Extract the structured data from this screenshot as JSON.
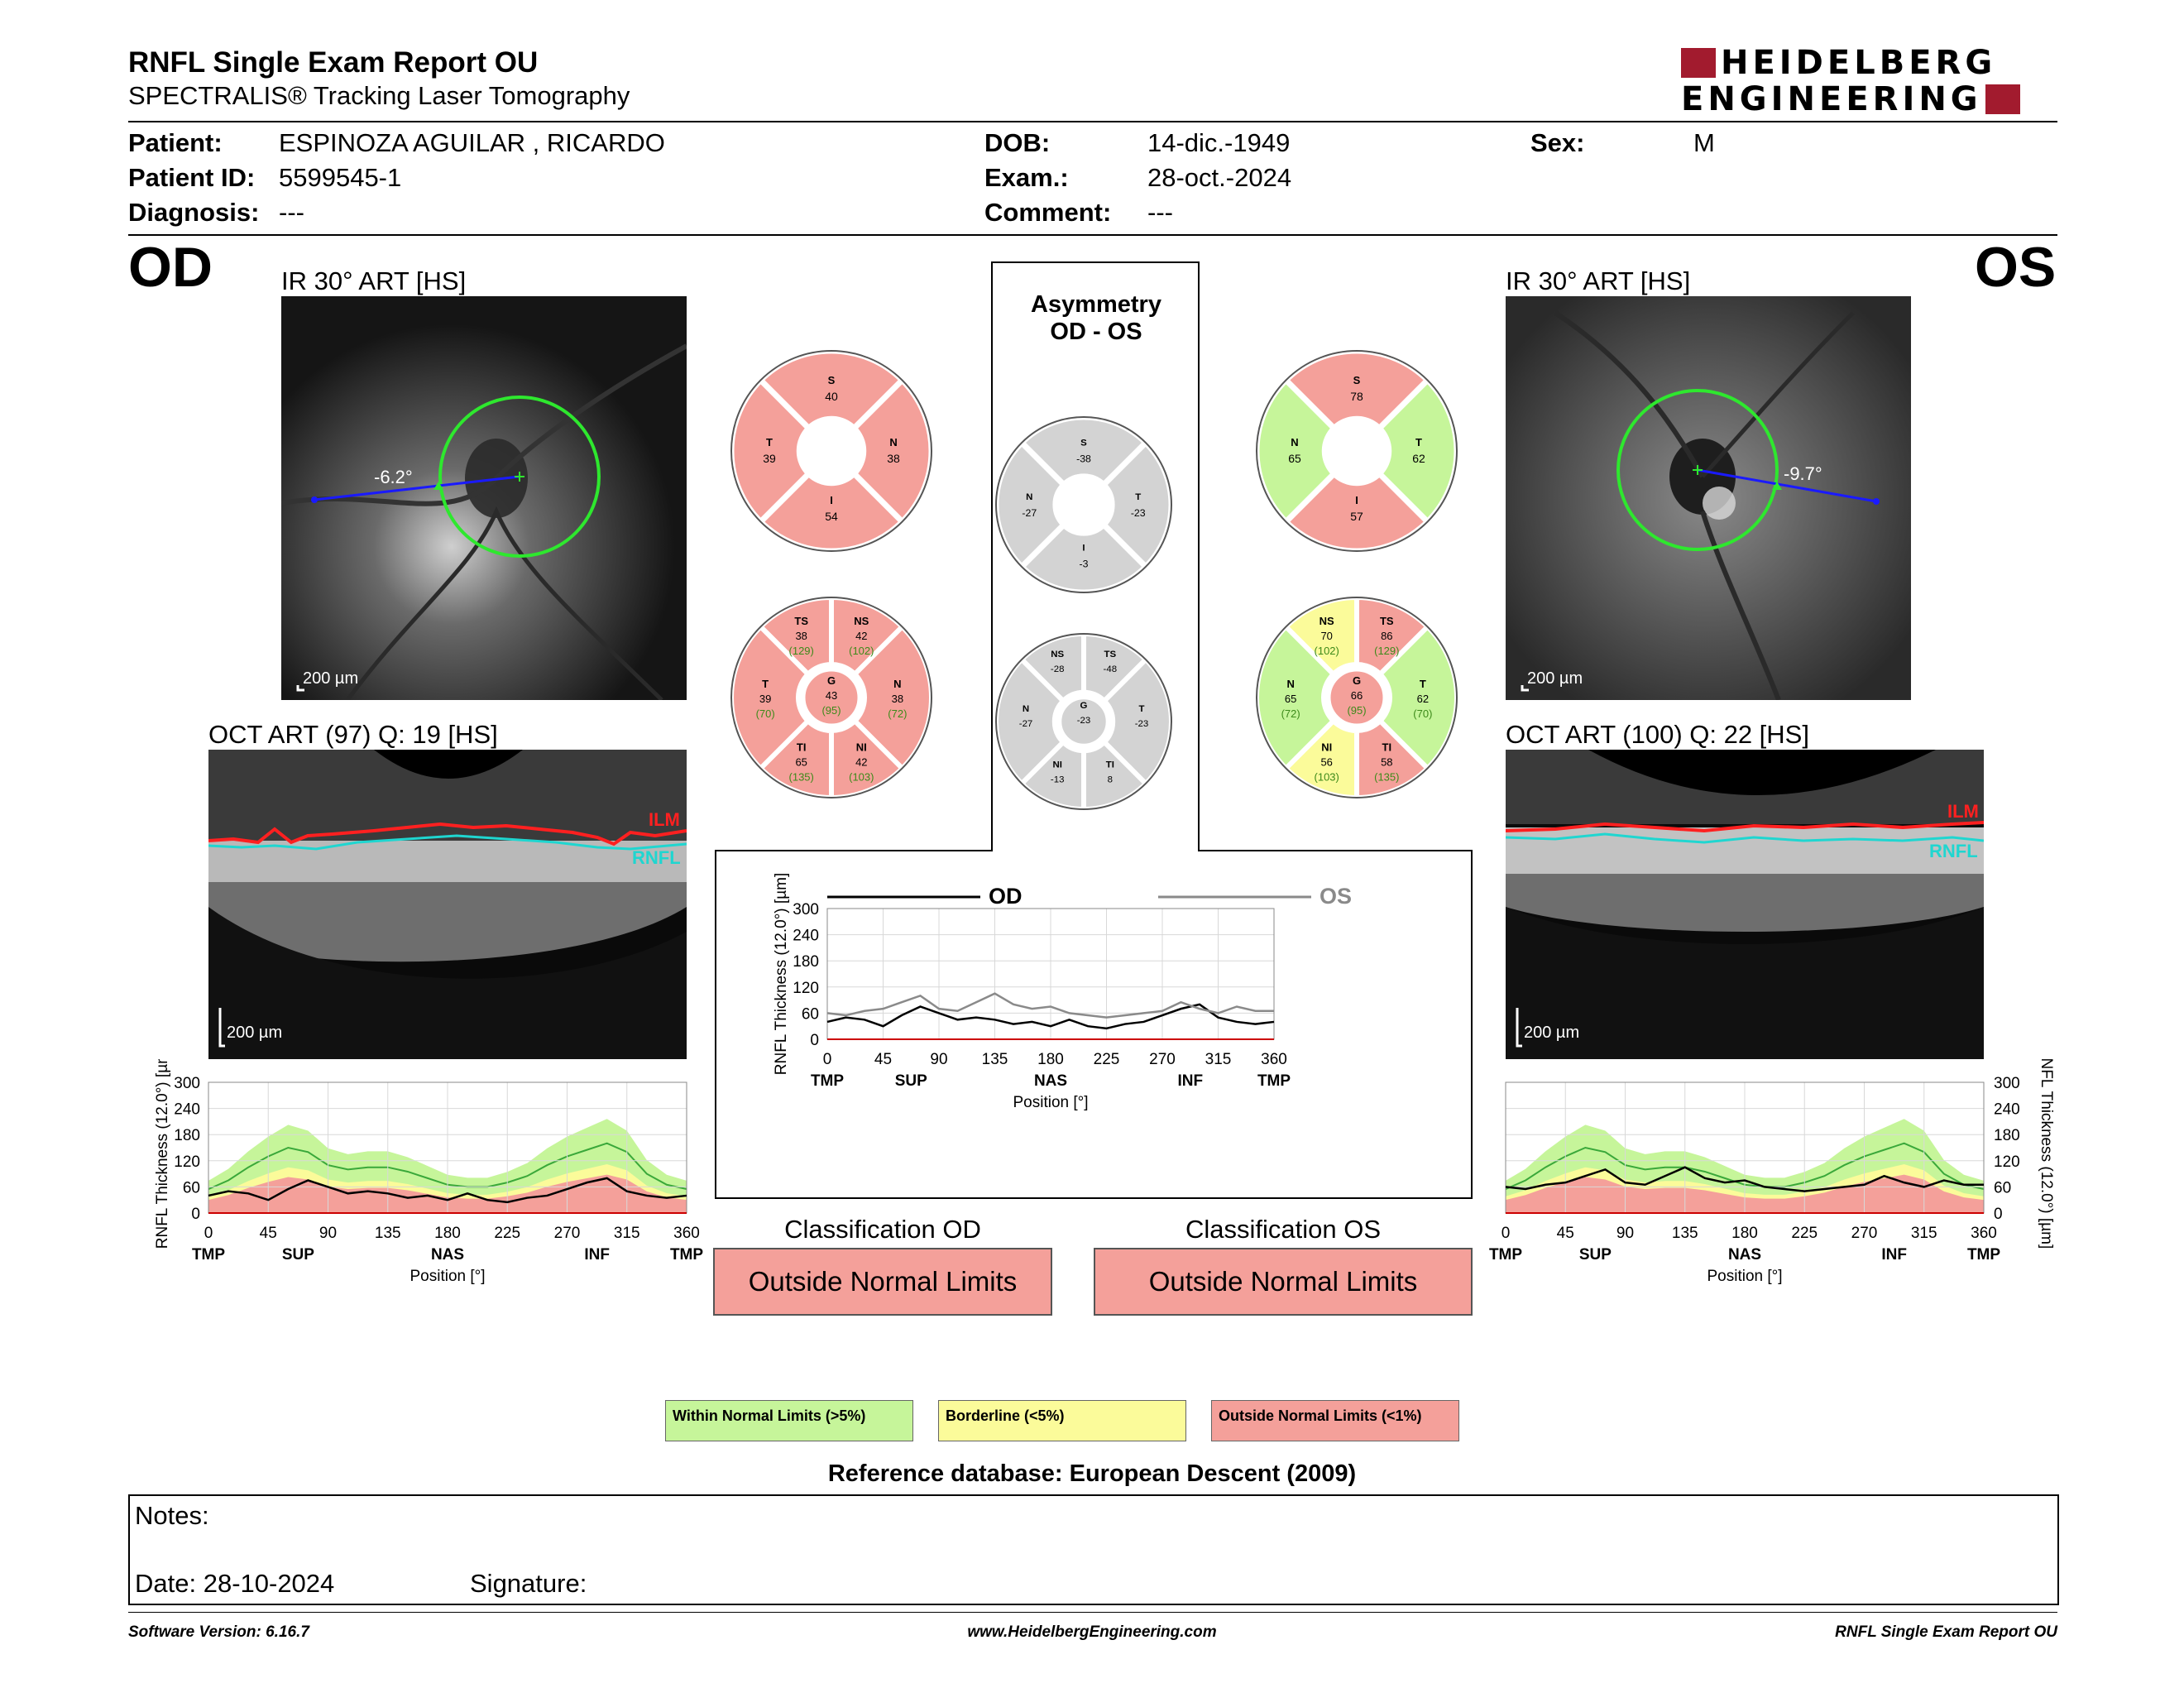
{
  "header": {
    "title": "RNFL Single Exam Report OU",
    "subtitle": "SPECTRALIS® Tracking Laser Tomography",
    "logo_line1": "HEIDELBERG",
    "logo_line2": "ENGINEERING"
  },
  "patient": {
    "patient_label": "Patient:",
    "patient_value": "ESPINOZA AGUILAR , RICARDO",
    "id_label": "Patient ID:",
    "id_value": "5599545-1",
    "diagnosis_label": "Diagnosis:",
    "diagnosis_value": "---",
    "dob_label": "DOB:",
    "dob_value": "14-dic.-1949",
    "exam_label": "Exam.:",
    "exam_value": "28-oct.-2024",
    "comment_label": "Comment:",
    "comment_value": "---",
    "sex_label": "Sex:",
    "sex_value": "M"
  },
  "od": {
    "eye": "OD",
    "ir_caption": "IR 30° ART [HS]",
    "ir_angle": "-6.2°",
    "scale": "200 µm",
    "oct_caption": "OCT ART (97) Q: 19 [HS]",
    "ilm": "ILM",
    "rnfl": "RNFL",
    "sectors4": {
      "S": "40",
      "N": "38",
      "I": "54",
      "T": "39"
    },
    "sectors6": {
      "TS": "38",
      "TS_n": "(129)",
      "NS": "42",
      "NS_n": "(102)",
      "T": "39",
      "T_n": "(70)",
      "G": "43",
      "G_n": "(95)",
      "N": "38",
      "N_n": "(72)",
      "TI": "65",
      "TI_n": "(135)",
      "NI": "42",
      "NI_n": "(103)"
    },
    "class_title": "Classification OD",
    "class_value": "Outside Normal Limits"
  },
  "os": {
    "eye": "OS",
    "ir_caption": "IR 30° ART [HS]",
    "ir_angle": "-9.7°",
    "scale": "200 µm",
    "oct_caption": "OCT ART (100) Q: 22 [HS]",
    "ilm": "ILM",
    "rnfl": "RNFL",
    "sectors4": {
      "S": "78",
      "N": "65",
      "I": "57",
      "T": "62"
    },
    "sectors6": {
      "NS": "70",
      "NS_n": "(102)",
      "TS": "86",
      "TS_n": "(129)",
      "N": "65",
      "N_n": "(72)",
      "G": "66",
      "G_n": "(95)",
      "T": "62",
      "T_n": "(70)",
      "NI": "56",
      "NI_n": "(103)",
      "TI": "58",
      "TI_n": "(135)"
    },
    "class_title": "Classification OS",
    "class_value": "Outside Normal Limits"
  },
  "asym": {
    "title1": "Asymmetry",
    "title2": "OD - OS",
    "sectors4": {
      "S": "-38",
      "N": "-27",
      "I": "-3",
      "T": "-23"
    },
    "sectors6": {
      "NS": "-28",
      "TS": "-48",
      "N": "-27",
      "G": "-23",
      "T": "-23",
      "NI": "-13",
      "TI": "8"
    }
  },
  "chart_data": [
    {
      "type": "line",
      "title": "",
      "ylabel": "RNFL Thickness (12.0°) [µm]",
      "xlabel": "Position [°]",
      "ylim": [
        0,
        300
      ],
      "xlim": [
        0,
        360
      ],
      "yticks": [
        "300",
        "240",
        "180",
        "120",
        "60",
        "0"
      ],
      "xticks": [
        "0",
        "45",
        "90",
        "135",
        "180",
        "225",
        "270",
        "315",
        "360"
      ],
      "xcats": [
        "TMP",
        "SUP",
        "NAS",
        "INF",
        "TMP"
      ],
      "series": [
        {
          "name": "OD",
          "x": [
            0,
            15,
            30,
            45,
            60,
            75,
            90,
            105,
            120,
            135,
            150,
            165,
            180,
            195,
            210,
            225,
            240,
            255,
            270,
            285,
            300,
            315,
            330,
            345,
            360
          ],
          "values": [
            40,
            50,
            45,
            30,
            55,
            75,
            60,
            45,
            50,
            45,
            35,
            40,
            30,
            45,
            30,
            25,
            35,
            40,
            55,
            70,
            80,
            50,
            40,
            35,
            40
          ]
        }
      ],
      "normal_median": [
        55,
        75,
        105,
        130,
        150,
        140,
        110,
        100,
        105,
        105,
        95,
        80,
        65,
        60,
        60,
        70,
        85,
        110,
        130,
        145,
        160,
        140,
        90,
        65,
        55
      ]
    },
    {
      "type": "line",
      "title": "",
      "ylabel": "RNFL Thickness (12.0°) [µm]",
      "xlabel": "Position [°]",
      "ylim": [
        0,
        300
      ],
      "xlim": [
        0,
        360
      ],
      "yticks": [
        "300",
        "240",
        "180",
        "120",
        "60",
        "0"
      ],
      "xticks": [
        "0",
        "45",
        "90",
        "135",
        "180",
        "225",
        "270",
        "315",
        "360"
      ],
      "xcats": [
        "TMP",
        "SUP",
        "NAS",
        "INF",
        "TMP"
      ],
      "legend": [
        "OD",
        "OS"
      ],
      "series": [
        {
          "name": "OD",
          "x": [
            0,
            15,
            30,
            45,
            60,
            75,
            90,
            105,
            120,
            135,
            150,
            165,
            180,
            195,
            210,
            225,
            240,
            255,
            270,
            285,
            300,
            315,
            330,
            345,
            360
          ],
          "values": [
            40,
            50,
            45,
            30,
            55,
            75,
            60,
            45,
            50,
            45,
            35,
            40,
            30,
            45,
            30,
            25,
            35,
            40,
            55,
            70,
            80,
            50,
            40,
            35,
            40
          ]
        },
        {
          "name": "OS",
          "x": [
            0,
            15,
            30,
            45,
            60,
            75,
            90,
            105,
            120,
            135,
            150,
            165,
            180,
            195,
            210,
            225,
            240,
            255,
            270,
            285,
            300,
            315,
            330,
            345,
            360
          ],
          "values": [
            60,
            55,
            65,
            70,
            85,
            100,
            70,
            65,
            85,
            105,
            80,
            70,
            75,
            60,
            55,
            50,
            55,
            60,
            65,
            85,
            70,
            60,
            75,
            65,
            65
          ]
        }
      ]
    },
    {
      "type": "line",
      "title": "",
      "ylabel": "RNFL Thickness (12.0°) [µm]",
      "xlabel": "Position [°]",
      "ylim": [
        0,
        300
      ],
      "xlim": [
        0,
        360
      ],
      "yticks": [
        "300",
        "240",
        "180",
        "120",
        "60",
        "0"
      ],
      "xticks": [
        "0",
        "45",
        "90",
        "135",
        "180",
        "225",
        "270",
        "315",
        "360"
      ],
      "xcats": [
        "TMP",
        "SUP",
        "NAS",
        "INF",
        "TMP"
      ],
      "series": [
        {
          "name": "OS",
          "x": [
            0,
            15,
            30,
            45,
            60,
            75,
            90,
            105,
            120,
            135,
            150,
            165,
            180,
            195,
            210,
            225,
            240,
            255,
            270,
            285,
            300,
            315,
            330,
            345,
            360
          ],
          "values": [
            60,
            55,
            65,
            70,
            85,
            100,
            70,
            65,
            85,
            105,
            80,
            70,
            75,
            60,
            55,
            50,
            55,
            60,
            65,
            85,
            70,
            60,
            75,
            65,
            65
          ]
        }
      ],
      "normal_median": [
        55,
        75,
        105,
        130,
        150,
        140,
        110,
        100,
        105,
        105,
        95,
        80,
        65,
        60,
        60,
        70,
        85,
        110,
        130,
        145,
        160,
        140,
        90,
        65,
        55
      ]
    }
  ],
  "legend": {
    "within": "Within Normal Limits (>5%)",
    "borderline": "Borderline (<5%)",
    "outside": "Outside Normal Limits (<1%)",
    "color_within": "#c6f59a",
    "color_borderline": "#fbfb9a",
    "color_outside": "#f4a09a",
    "color_asym": "#d3d3d3"
  },
  "reference": "Reference database: European Descent (2009)",
  "notes": {
    "label": "Notes:",
    "date": "Date: 28-10-2024",
    "signature": "Signature:"
  },
  "footer": {
    "version": "Software Version: 6.16.7",
    "url": "www.HeidelbergEngineering.com",
    "report": "RNFL Single Exam Report OU"
  }
}
